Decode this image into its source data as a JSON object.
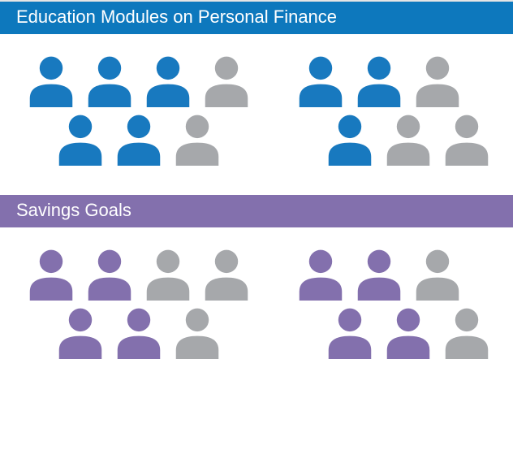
{
  "background_color": "#ffffff",
  "inactive_color": "#a6a8ab",
  "sections": [
    {
      "id": "education",
      "title": "Education Modules on Personal Finance",
      "header_bg": "#0d78bd",
      "active_color": "#1879bf",
      "groups": [
        {
          "rows": [
            {
              "icons": [
                true,
                true,
                true,
                false
              ],
              "indent": "none"
            },
            {
              "icons": [
                true,
                true,
                false
              ],
              "indent": "left"
            }
          ]
        },
        {
          "rows": [
            {
              "icons": [
                true,
                true,
                false
              ],
              "indent": "none"
            },
            {
              "icons": [
                true,
                false,
                false
              ],
              "indent": "right"
            }
          ]
        }
      ]
    },
    {
      "id": "savings",
      "title": "Savings Goals",
      "header_bg": "#8370ad",
      "active_color": "#8370ad",
      "groups": [
        {
          "rows": [
            {
              "icons": [
                true,
                true,
                false,
                false
              ],
              "indent": "none"
            },
            {
              "icons": [
                true,
                true,
                false
              ],
              "indent": "left"
            }
          ]
        },
        {
          "rows": [
            {
              "icons": [
                true,
                true,
                false
              ],
              "indent": "none"
            },
            {
              "icons": [
                true,
                true,
                false
              ],
              "indent": "right"
            }
          ]
        }
      ]
    }
  ]
}
